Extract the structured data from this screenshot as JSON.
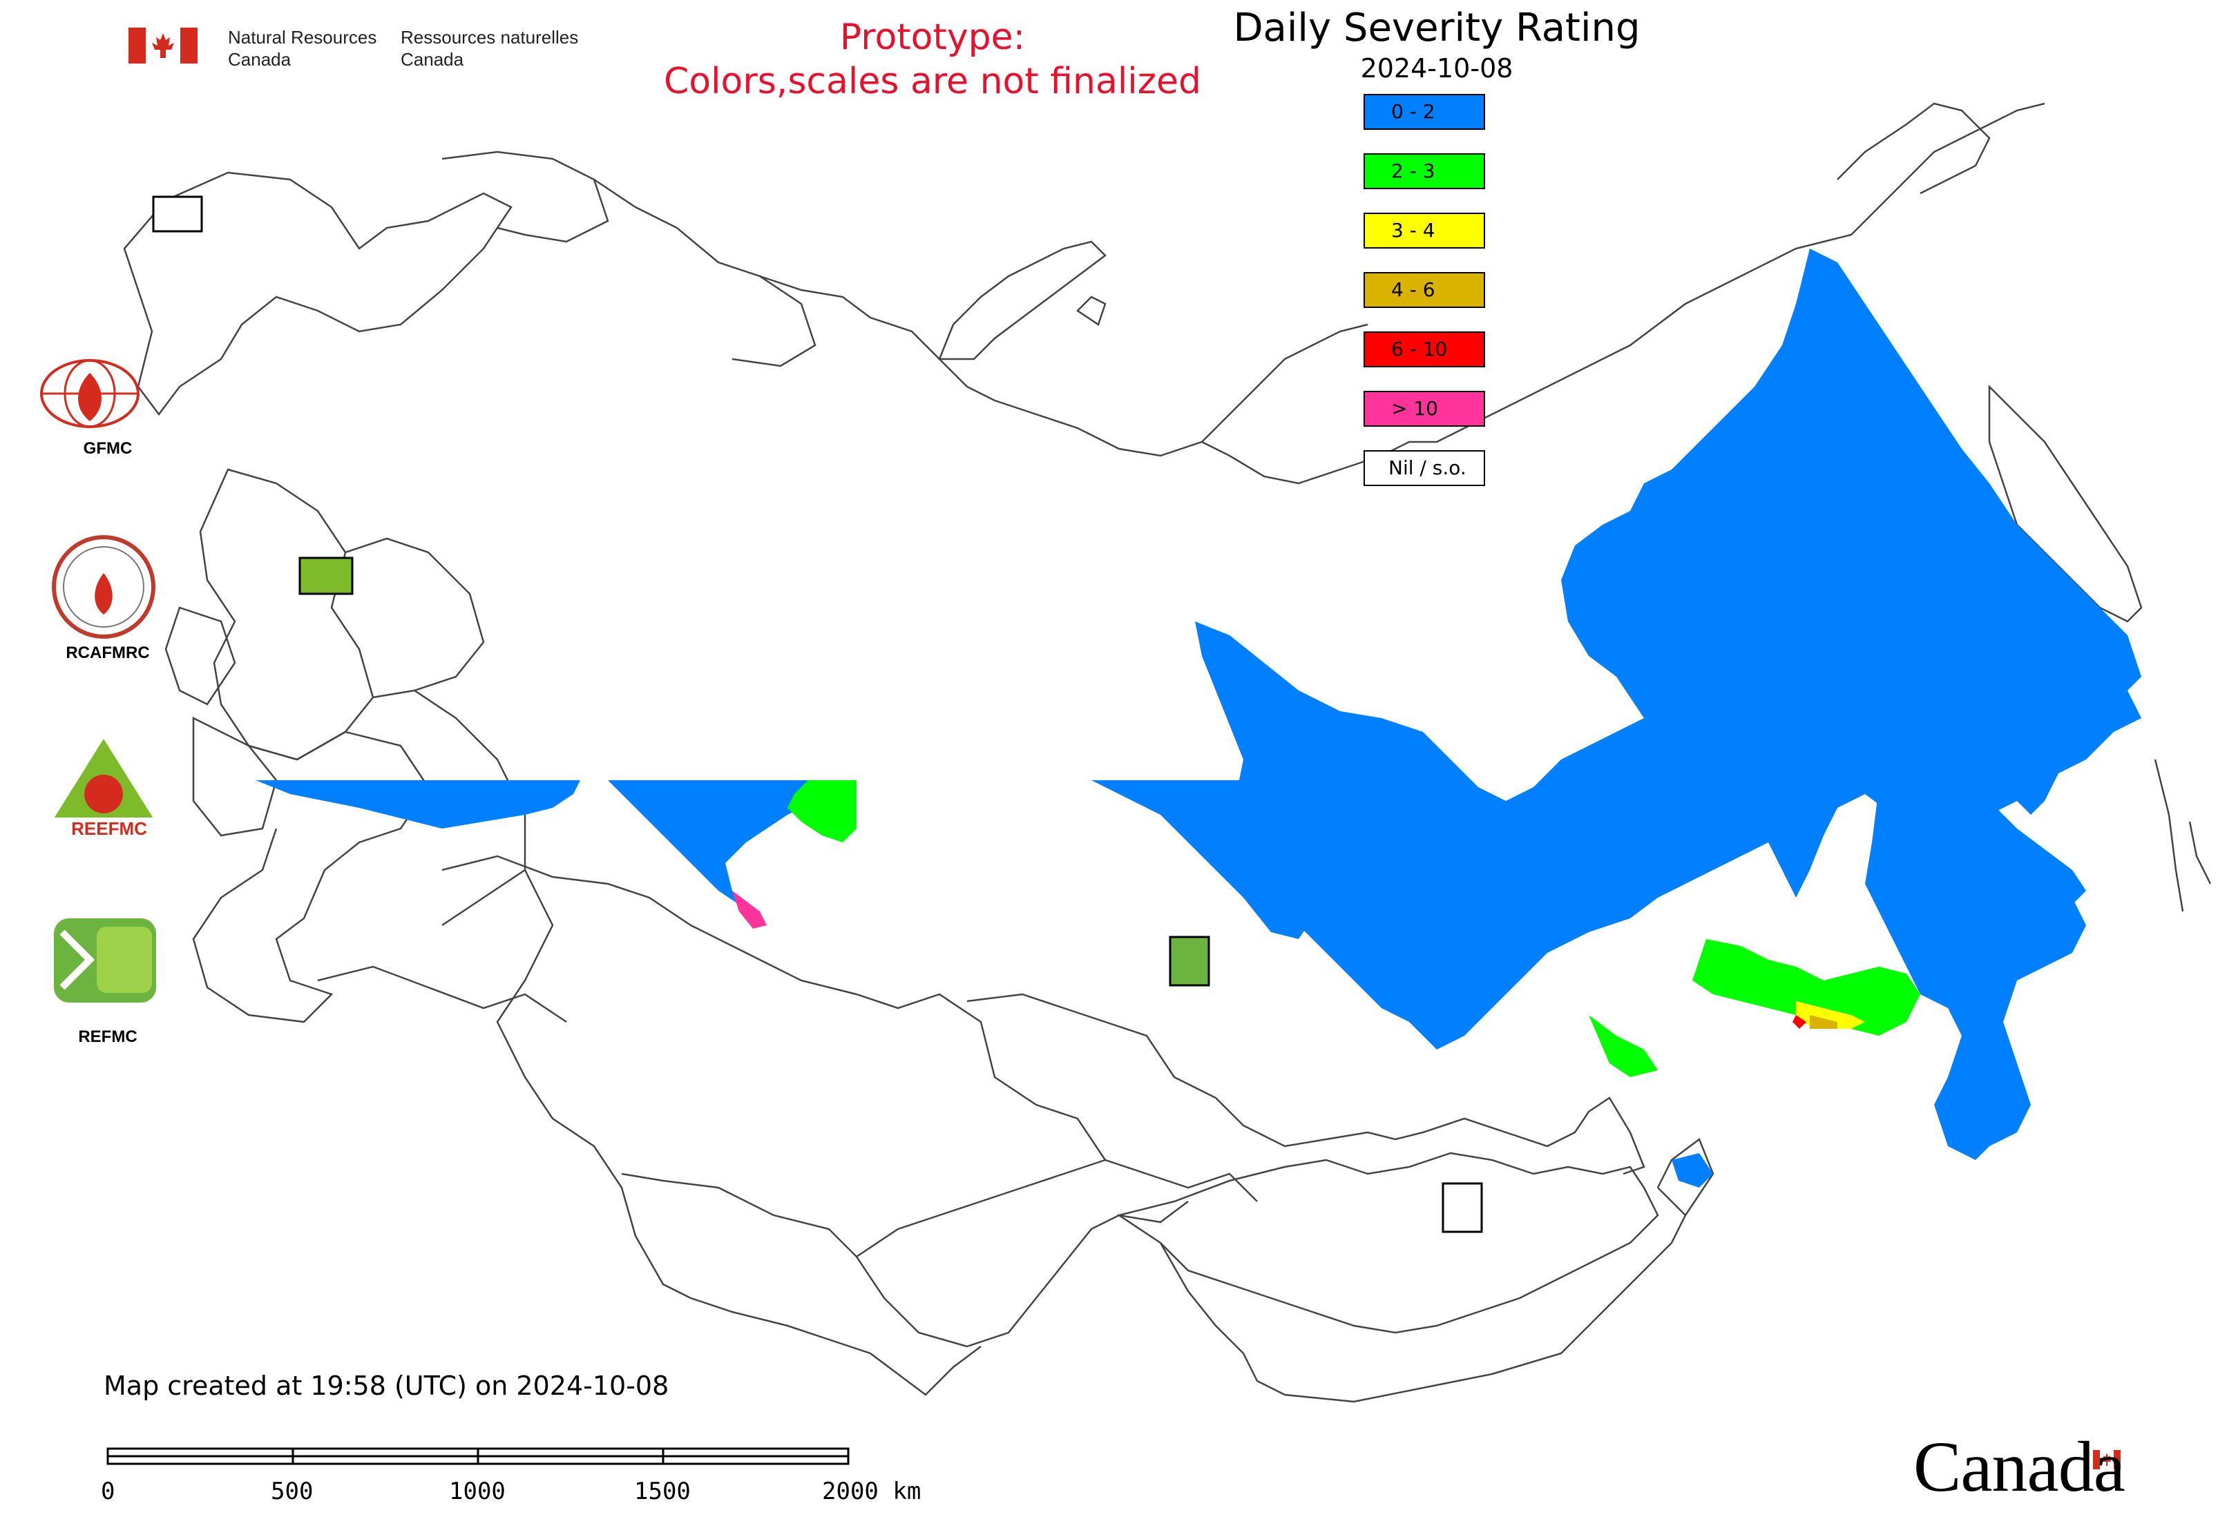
{
  "header": {
    "department_en_line1": "Natural Resources",
    "department_en_line2": "Canada",
    "department_fr_line1": "Ressources naturelles",
    "department_fr_line2": "Canada",
    "prototype_line1": "Prototype:",
    "prototype_line2": "Colors,scales are not finalized",
    "title": "Daily Severity Rating",
    "date": "2024-10-08"
  },
  "legend": {
    "items": [
      {
        "label": "0 - 2",
        "color": "#0080ff"
      },
      {
        "label": "2 - 3",
        "color": "#00ff00"
      },
      {
        "label": "3 - 4",
        "color": "#ffff00"
      },
      {
        "label": "4 - 6",
        "color": "#d9b300"
      },
      {
        "label": "6 - 10",
        "color": "#ff0000"
      },
      {
        "label": "> 10",
        "color": "#ff3399"
      },
      {
        "label": "Nil / s.o.",
        "color": "#ffffff"
      }
    ]
  },
  "logos": {
    "gfmc": "GFMC",
    "rcafmrc": "RCAFMRC",
    "reefmc": "REEFMC",
    "refmc": "REFMC"
  },
  "footer": {
    "created": "Map created at 19:58 (UTC) on 2024-10-08",
    "scale_labels": [
      "0",
      "500",
      "1000",
      "1500",
      "2000 km"
    ],
    "wordmark": "Canada"
  },
  "colors": {
    "severity_0_2": "#0080ff",
    "severity_2_3": "#00ff00",
    "severity_3_4": "#ffff00",
    "severity_4_6": "#d9b300",
    "severity_6_10": "#ff0000",
    "severity_gt_10": "#ff3399",
    "prototype_text": "#e8112d",
    "border": "#444444"
  }
}
